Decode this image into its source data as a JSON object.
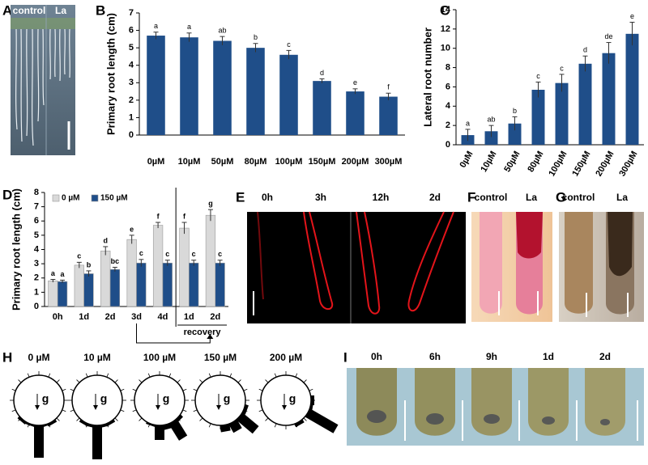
{
  "panel_letters": [
    "A",
    "B",
    "C",
    "D",
    "E",
    "F",
    "G",
    "H",
    "I"
  ],
  "panel_a": {
    "labels": [
      "control",
      "La"
    ]
  },
  "panel_e": {
    "labels": [
      "0h",
      "3h",
      "12h",
      "2d"
    ]
  },
  "panel_f": {
    "labels": [
      "control",
      "La"
    ]
  },
  "panel_g": {
    "labels": [
      "control",
      "La"
    ]
  },
  "panel_i": {
    "labels": [
      "0h",
      "6h",
      "9h",
      "1d",
      "2d"
    ]
  },
  "chart_data": [
    {
      "type": "bar",
      "ylabel": "Primary root length (cm)",
      "categories": [
        "0µM",
        "10µM",
        "50µM",
        "80µM",
        "100µM",
        "150µM",
        "200µM",
        "300µM"
      ],
      "values": [
        5.7,
        5.6,
        5.4,
        5.0,
        4.6,
        3.1,
        2.5,
        2.2
      ],
      "errors": [
        0.2,
        0.25,
        0.25,
        0.25,
        0.25,
        0.12,
        0.15,
        0.2
      ],
      "letters": [
        "a",
        "a",
        "ab",
        "b",
        "c",
        "d",
        "e",
        "f"
      ],
      "color": "#1f4e89",
      "ylim": [
        0,
        7
      ],
      "yticks": [
        0,
        1,
        2,
        3,
        4,
        5,
        6,
        7
      ]
    },
    {
      "type": "bar",
      "ylabel": "Lateral root number",
      "categories": [
        "0µM",
        "10µM",
        "50µM",
        "80µM",
        "100µM",
        "150µM",
        "200µM",
        "300µM"
      ],
      "values": [
        1.0,
        1.4,
        2.2,
        5.7,
        6.4,
        8.4,
        9.5,
        11.5
      ],
      "errors": [
        0.6,
        0.6,
        0.7,
        0.8,
        0.9,
        0.8,
        1.1,
        1.2
      ],
      "letters": [
        "a",
        "ab",
        "b",
        "c",
        "c",
        "d",
        "de",
        "e"
      ],
      "color": "#1f4e89",
      "ylim": [
        0,
        14
      ],
      "yticks": [
        0,
        2,
        4,
        6,
        8,
        10,
        12,
        14
      ]
    },
    {
      "type": "grouped-bar",
      "ylabel": "Primary root length (cm)",
      "categories": [
        "0h",
        "1d",
        "2d",
        "3d",
        "4d",
        "1d",
        "2d"
      ],
      "group_label": "recovery",
      "series": [
        {
          "name": "0 µM",
          "color": "#d9d9d9",
          "values": [
            1.8,
            2.9,
            3.9,
            4.7,
            5.7,
            5.5,
            6.4
          ],
          "errors": [
            0.1,
            0.2,
            0.3,
            0.3,
            0.2,
            0.4,
            0.4
          ],
          "letters": [
            "a",
            "c",
            "d",
            "e",
            "f",
            "f",
            "g"
          ]
        },
        {
          "name": "150 µM",
          "color": "#1f4e89",
          "values": [
            1.75,
            2.3,
            2.6,
            3.05,
            3.05,
            3.05,
            3.05
          ],
          "errors": [
            0.1,
            0.2,
            0.15,
            0.25,
            0.2,
            0.2,
            0.2
          ],
          "letters": [
            "a",
            "b",
            "bc",
            "c",
            "c",
            "c",
            "c"
          ]
        }
      ],
      "ylim": [
        0,
        8
      ],
      "yticks": [
        0,
        1,
        2,
        3,
        4,
        5,
        6,
        7,
        8
      ],
      "legend": "top-left"
    },
    {
      "type": "rose",
      "title": "0 µM",
      "annotation": "g",
      "x": [
        -40,
        -30,
        -20,
        0,
        20,
        30
      ],
      "values": [
        3,
        2,
        2,
        40,
        2,
        3
      ],
      "color": "#000000"
    },
    {
      "type": "rose",
      "title": "10 µM",
      "annotation": "g",
      "x": [
        -30,
        -15,
        0,
        15,
        30
      ],
      "values": [
        3,
        3,
        42,
        3,
        3
      ],
      "color": "#000000"
    },
    {
      "type": "rose",
      "title": "100 µM",
      "annotation": "g",
      "x": [
        -20,
        0,
        15,
        32,
        45
      ],
      "values": [
        2,
        18,
        6,
        24,
        4
      ],
      "color": "#000000"
    },
    {
      "type": "rose",
      "title": "150 µM",
      "annotation": "g",
      "x": [
        10,
        30,
        50,
        70
      ],
      "values": [
        8,
        12,
        26,
        4
      ],
      "color": "#000000"
    },
    {
      "type": "rose",
      "title": "200 µM",
      "annotation": "g",
      "x": [
        30,
        60,
        80,
        90
      ],
      "values": [
        4,
        40,
        3,
        4
      ],
      "color": "#000000"
    }
  ]
}
